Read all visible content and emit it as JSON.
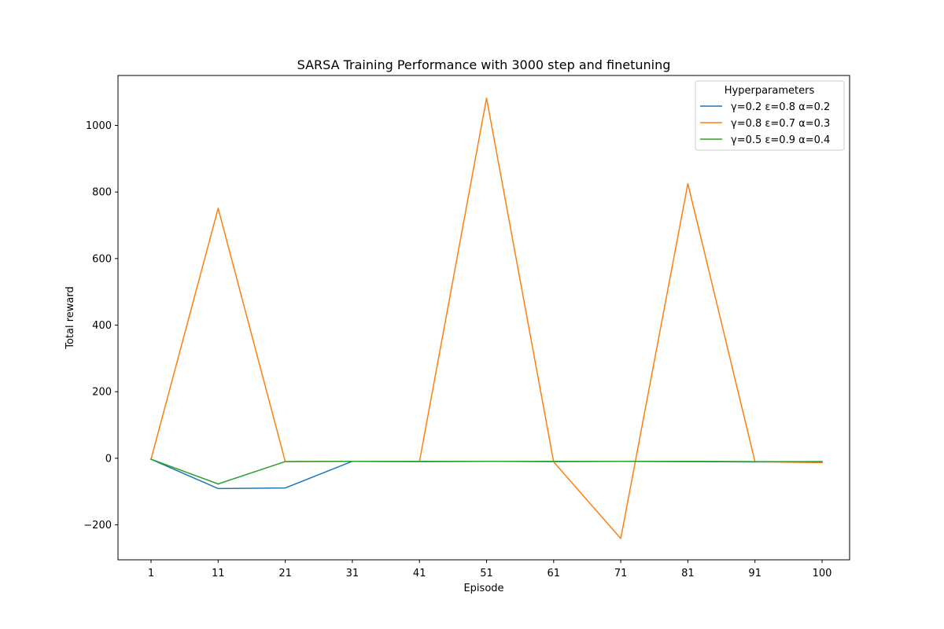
{
  "chart_data": {
    "type": "line",
    "title": "SARSA Training Performance with 3000 step and finetuning",
    "xlabel": "Episode",
    "ylabel": "Total reward",
    "x": [
      "1",
      "11",
      "21",
      "31",
      "41",
      "51",
      "61",
      "71",
      "81",
      "91",
      "100"
    ],
    "yticks": [
      "−200",
      "0",
      "200",
      "400",
      "600",
      "800",
      "1000"
    ],
    "ylim": [
      -305,
      1150
    ],
    "grid": false,
    "legend": {
      "title": "Hyperparameters",
      "placement": "top-right"
    },
    "series": [
      {
        "name": "γ=0.2 ε=0.8 α=0.2",
        "color": "#1f77b4",
        "values": [
          -3,
          -91,
          -89,
          -9,
          -10,
          -9,
          -10,
          -9,
          -10,
          -11,
          -10
        ]
      },
      {
        "name": "γ=0.8 ε=0.7 α=0.3",
        "color": "#ff7f0e",
        "values": [
          -3,
          751,
          -10,
          -9,
          -10,
          1082,
          -11,
          -241,
          825,
          -10,
          -13
        ]
      },
      {
        "name": "γ=0.5 ε=0.9 α=0.4",
        "color": "#2ca02c",
        "values": [
          -3,
          -77,
          -10,
          -9,
          -9,
          -9,
          -9,
          -9,
          -9,
          -10,
          -10
        ]
      }
    ]
  }
}
